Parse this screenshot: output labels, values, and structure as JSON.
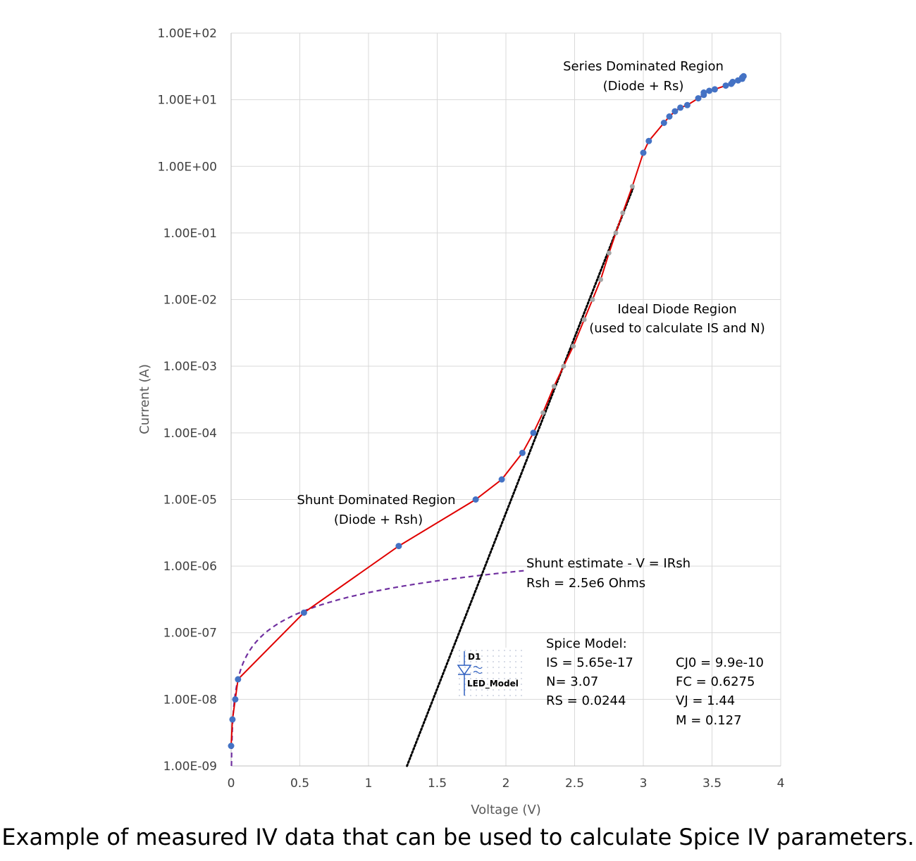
{
  "caption": "Example of measured IV data that can be used to calculate Spice IV parameters.",
  "chart_data": {
    "type": "scatter",
    "xlabel": "Voltage (V)",
    "ylabel": "Current (A)",
    "xlim": [
      0,
      4
    ],
    "ylim": [
      1e-09,
      100
    ],
    "yscale": "log",
    "grid": true,
    "x_ticks": [
      "0",
      "0.5",
      "1",
      "1.5",
      "2",
      "2.5",
      "3",
      "3.5",
      "4"
    ],
    "y_ticks": [
      "1.00E-09",
      "1.00E-08",
      "1.00E-07",
      "1.00E-06",
      "1.00E-05",
      "1.00E-04",
      "1.00E-03",
      "1.00E-02",
      "1.00E-01",
      "1.00E+00",
      "1.00E+01",
      "1.00E+02"
    ],
    "series": [
      {
        "kind": "measured",
        "color": "#e00000",
        "marker_color": "#4472c4",
        "points": [
          [
            0.0,
            2e-09
          ],
          [
            0.01,
            5e-09
          ],
          [
            0.03,
            1e-08
          ],
          [
            0.05,
            2e-08
          ],
          [
            0.53,
            2e-07
          ],
          [
            1.22,
            2e-06
          ],
          [
            1.78,
            1e-05
          ],
          [
            1.97,
            2e-05
          ],
          [
            2.12,
            5e-05
          ],
          [
            2.2,
            0.0001
          ],
          [
            2.27,
            0.0002
          ],
          [
            2.35,
            0.0005
          ],
          [
            2.42,
            0.001
          ],
          [
            2.49,
            0.002
          ],
          [
            2.57,
            0.005
          ],
          [
            2.63,
            0.01
          ],
          [
            2.69,
            0.02
          ],
          [
            2.75,
            0.05
          ],
          [
            2.8,
            0.1
          ],
          [
            2.85,
            0.2
          ],
          [
            2.92,
            0.5
          ],
          [
            3.0,
            1.6
          ],
          [
            3.04,
            2.4
          ],
          [
            3.15,
            4.5
          ],
          [
            3.19,
            5.6
          ],
          [
            3.23,
            6.7
          ],
          [
            3.27,
            7.6
          ],
          [
            3.32,
            8.3
          ],
          [
            3.4,
            10.5
          ],
          [
            3.44,
            11.8
          ],
          [
            3.44,
            12.8
          ],
          [
            3.48,
            13.6
          ],
          [
            3.52,
            14.3
          ],
          [
            3.6,
            16.3
          ],
          [
            3.64,
            17.3
          ],
          [
            3.65,
            18.5
          ],
          [
            3.69,
            19.5
          ],
          [
            3.72,
            20.6
          ],
          [
            3.72,
            21.6
          ],
          [
            3.73,
            22.5
          ]
        ],
        "gray_points": [
          [
            2.27,
            0.0002
          ],
          [
            2.35,
            0.0005
          ],
          [
            2.42,
            0.001
          ],
          [
            2.49,
            0.002
          ],
          [
            2.57,
            0.005
          ],
          [
            2.63,
            0.01
          ],
          [
            2.69,
            0.02
          ],
          [
            2.75,
            0.05
          ],
          [
            2.8,
            0.1
          ],
          [
            2.85,
            0.2
          ],
          [
            2.92,
            0.5
          ]
        ]
      },
      {
        "kind": "shunt-estimate",
        "color": "#7030a0",
        "style": "dashed",
        "rsh": 2500000.0,
        "x_range": [
          0,
          2.13
        ]
      },
      {
        "kind": "ideal-diode",
        "color": "#000000",
        "style": "dotted",
        "points": [
          [
            1.28,
            1e-09
          ],
          [
            2.93,
            0.5
          ]
        ]
      }
    ],
    "annotations": {
      "series_region": [
        "Series Dominated Region",
        "(Diode + Rs)"
      ],
      "ideal_region": [
        "Ideal Diode Region",
        "(used to calculate IS and N)"
      ],
      "shunt_region": [
        "Shunt Dominated Region",
        "(Diode + Rsh)"
      ],
      "shunt_estimate": [
        "Shunt estimate - V = IRsh",
        "Rsh = 2.5e6 Ohms"
      ],
      "spice_left": [
        "Spice Model:",
        "IS = 5.65e-17",
        "N= 3.07",
        "RS = 0.0244"
      ],
      "spice_right": [
        "CJ0 = 9.9e-10",
        "FC = 0.6275",
        "VJ = 1.44",
        "M = 0.127"
      ],
      "symbol_labels": [
        "D1",
        "LED_Model"
      ]
    }
  }
}
